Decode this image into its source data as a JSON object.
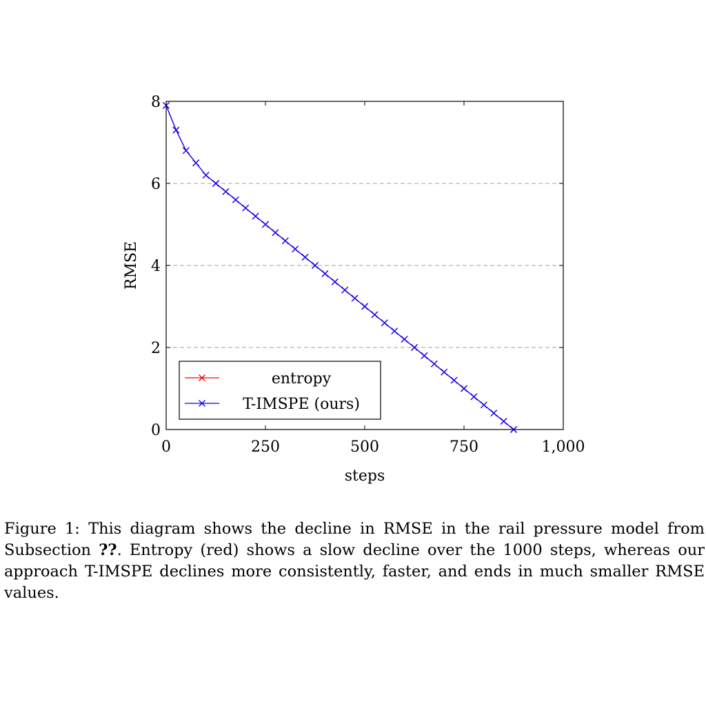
{
  "chart_data": {
    "type": "line",
    "xlabel": "steps",
    "ylabel": "RMSE",
    "xlim": [
      0,
      1000
    ],
    "ylim": [
      0,
      8
    ],
    "xticks": [
      0,
      250,
      500,
      750,
      1000
    ],
    "xtick_labels": [
      "0",
      "250",
      "500",
      "750",
      "1,000"
    ],
    "yticks": [
      0,
      2,
      4,
      6,
      8
    ],
    "ytick_labels": [
      "0",
      "2",
      "4",
      "6",
      "8"
    ],
    "grid": "horizontal dashed at y ticks",
    "legend_position": "bottom-left",
    "series": [
      {
        "name": "entropy",
        "color": "#ff0000",
        "marker": "x",
        "x": [
          0,
          25,
          50,
          75,
          100,
          125,
          150,
          175,
          200,
          225,
          250,
          275,
          300,
          325,
          350,
          375,
          400,
          425,
          450,
          475,
          500,
          525,
          550,
          575,
          600,
          625,
          650,
          675,
          700,
          725,
          750,
          775,
          800,
          825,
          850,
          875
        ],
        "y": [
          7.9,
          7.3,
          6.8,
          6.5,
          6.2,
          6.0,
          5.8,
          5.6,
          5.4,
          5.2,
          5.0,
          4.8,
          4.6,
          4.4,
          4.2,
          4.0,
          3.8,
          3.6,
          3.4,
          3.2,
          3.0,
          2.8,
          2.6,
          2.4,
          2.2,
          2.0,
          1.8,
          1.6,
          1.4,
          1.2,
          1.0,
          0.8,
          0.6,
          0.4,
          0.2,
          0.0
        ]
      },
      {
        "name": "T-IMSPE (ours)",
        "color": "#0000ff",
        "marker": "x",
        "x": [
          0,
          25,
          50,
          75,
          100,
          125,
          150,
          175,
          200,
          225,
          250,
          275,
          300,
          325,
          350,
          375,
          400,
          425,
          450,
          475,
          500,
          525,
          550,
          575,
          600,
          625,
          650,
          675,
          700,
          725,
          750,
          775,
          800,
          825,
          850,
          875
        ],
        "y": [
          7.9,
          7.3,
          6.8,
          6.5,
          6.2,
          6.0,
          5.8,
          5.6,
          5.4,
          5.2,
          5.0,
          4.8,
          4.6,
          4.4,
          4.2,
          4.0,
          3.8,
          3.6,
          3.4,
          3.2,
          3.0,
          2.8,
          2.6,
          2.4,
          2.2,
          2.0,
          1.8,
          1.6,
          1.4,
          1.2,
          1.0,
          0.8,
          0.6,
          0.4,
          0.2,
          0.0
        ]
      }
    ]
  },
  "caption": {
    "lead": "Figure 1: This diagram shows the decline in RMSE in the rail pressure model from Subsection ",
    "ref": "??",
    "tail": ". Entropy (red) shows a slow decline over the 1000 steps, whereas our approach T-IMSPE declines more consistently, faster, and ends in much smaller RMSE values."
  }
}
